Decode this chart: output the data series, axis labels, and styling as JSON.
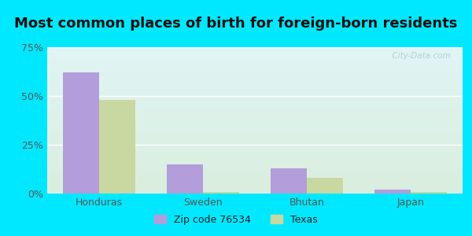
{
  "title": "Most common places of birth for foreign-born residents",
  "categories": [
    "Honduras",
    "Sweden",
    "Bhutan",
    "Japan"
  ],
  "zip_values": [
    62,
    15,
    13,
    2
  ],
  "texas_values": [
    48,
    1,
    8,
    1
  ],
  "zip_color": "#b39ddb",
  "texas_color": "#c8d8a0",
  "bar_width": 0.35,
  "ylim": [
    0,
    75
  ],
  "yticks": [
    0,
    25,
    50,
    75
  ],
  "ytick_labels": [
    "0%",
    "25%",
    "50%",
    "75%"
  ],
  "background_outer": "#00e8ff",
  "background_inner_topleft": "#d6f0e8",
  "background_inner_bottomright": "#e8f5ff",
  "legend_label_zip": "Zip code 76534",
  "legend_label_texas": "Texas",
  "title_fontsize": 13,
  "tick_fontsize": 9,
  "legend_fontsize": 9,
  "title_color": "#111111",
  "tick_color": "#555555"
}
